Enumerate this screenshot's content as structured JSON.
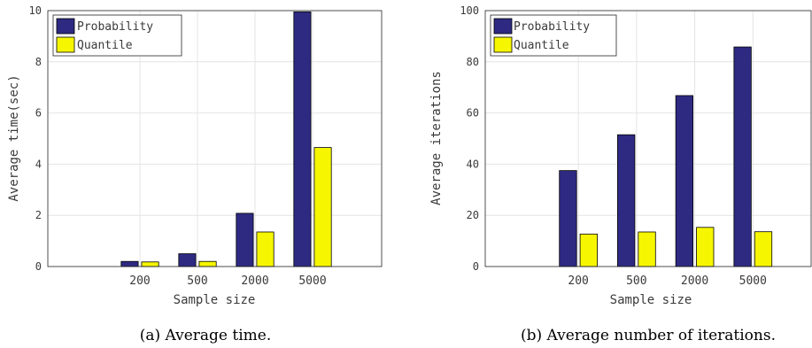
{
  "colors": {
    "probability": "#2e2a82",
    "quantile": "#f6f600",
    "grid": "#e4e4e4",
    "axis": "#262626",
    "text": "#3a3a3a"
  },
  "chart_data": [
    {
      "type": "bar",
      "categories": [
        "200",
        "500",
        "2000",
        "5000"
      ],
      "series": [
        {
          "name": "Probability",
          "values": [
            0.2,
            0.5,
            2.08,
            9.95
          ]
        },
        {
          "name": "Quantile",
          "values": [
            0.18,
            0.2,
            1.35,
            4.65
          ]
        }
      ],
      "xlabel": "Sample size",
      "ylabel": "Average time(sec)",
      "ylim": [
        0,
        10
      ],
      "yticks": [
        "0",
        "2",
        "4",
        "6",
        "8",
        "10"
      ],
      "caption": "(a) Average time.",
      "legend": "top-left",
      "grid": true
    },
    {
      "type": "bar",
      "categories": [
        "200",
        "500",
        "2000",
        "5000"
      ],
      "series": [
        {
          "name": "Probability",
          "values": [
            37.5,
            51.5,
            66.8,
            85.8
          ]
        },
        {
          "name": "Quantile",
          "values": [
            12.7,
            13.5,
            15.3,
            13.6
          ]
        }
      ],
      "xlabel": "Sample size",
      "ylabel": "Average iterations",
      "ylim": [
        0,
        100
      ],
      "yticks": [
        "0",
        "20",
        "40",
        "60",
        "80",
        "100"
      ],
      "caption": "(b) Average number of iterations.",
      "legend": "top-left",
      "grid": true
    }
  ]
}
